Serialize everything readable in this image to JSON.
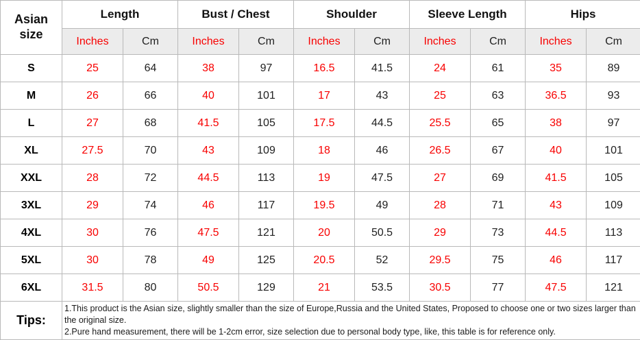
{
  "chart_data": {
    "type": "table",
    "corner_header": "Asian size",
    "groups": [
      "Length",
      "Bust / Chest",
      "Shoulder",
      "Sleeve Length",
      "Hips"
    ],
    "unit_inches": "Inches",
    "unit_cm": "Cm",
    "rows": [
      {
        "size": "S",
        "values": [
          25,
          64,
          38,
          97,
          16.5,
          41.5,
          24,
          61,
          35,
          89
        ]
      },
      {
        "size": "M",
        "values": [
          26,
          66,
          40,
          101,
          17,
          43,
          25,
          63,
          36.5,
          93
        ]
      },
      {
        "size": "L",
        "values": [
          27,
          68,
          41.5,
          105,
          17.5,
          44.5,
          25.5,
          65,
          38,
          97
        ]
      },
      {
        "size": "XL",
        "values": [
          27.5,
          70,
          43,
          109,
          18,
          46,
          26.5,
          67,
          40,
          101
        ]
      },
      {
        "size": "XXL",
        "values": [
          28,
          72,
          44.5,
          113,
          19,
          47.5,
          27,
          69,
          41.5,
          105
        ]
      },
      {
        "size": "3XL",
        "values": [
          29,
          74,
          46,
          117,
          19.5,
          49,
          28,
          71,
          43,
          109
        ]
      },
      {
        "size": "4XL",
        "values": [
          30,
          76,
          47.5,
          121,
          20,
          50.5,
          29,
          73,
          44.5,
          113
        ]
      },
      {
        "size": "5XL",
        "values": [
          30,
          78,
          49,
          125,
          20.5,
          52,
          29.5,
          75,
          46,
          117
        ]
      },
      {
        "size": "6XL",
        "values": [
          31.5,
          80,
          50.5,
          129,
          21,
          53.5,
          30.5,
          77,
          47.5,
          121
        ]
      }
    ],
    "tips": {
      "label": "Tips:",
      "lines": [
        "1.This product is the Asian size, slightly smaller than the size of Europe,Russia and the United States, Proposed to choose one or two sizes larger than the original size.",
        "2.Pure hand measurement, there will be 1-2cm error, size selection due to personal body type, like, this table is for reference only."
      ]
    }
  },
  "colors": {
    "inches_red": "#f80000",
    "text_dark": "#1f1f1f",
    "border_gray": "#b9b9b9",
    "unit_row_bg": "#ececec"
  }
}
